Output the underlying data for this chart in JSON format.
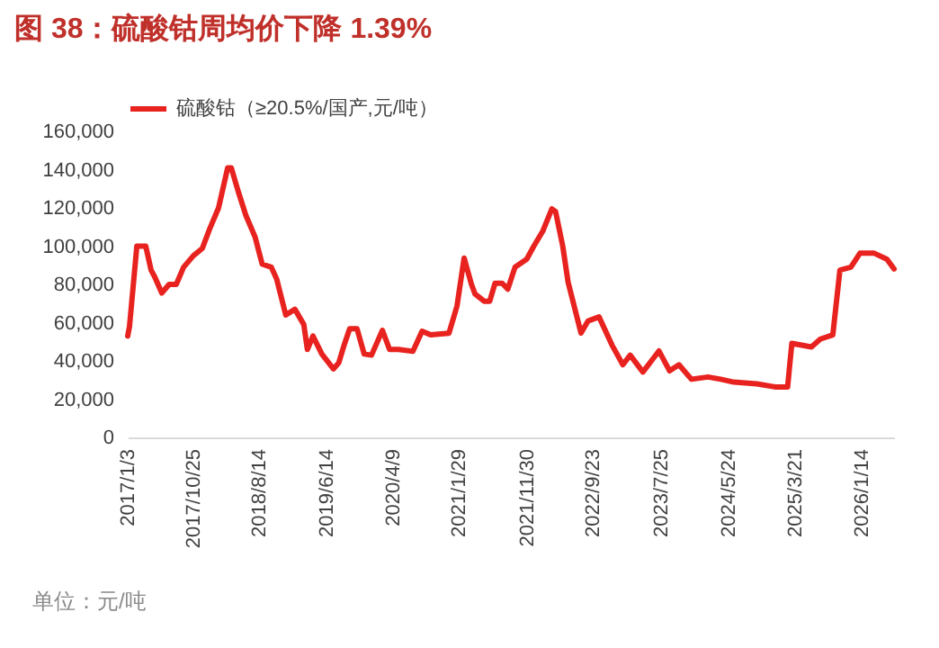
{
  "chart_data": {
    "type": "line",
    "title": "图 38：硫酸钴周均价下降 1.39%",
    "annotations": [
      "单位：元/吨"
    ],
    "legend": "top",
    "grid": false,
    "marker": "none",
    "line_style": "solid",
    "xlim": [
      "2017-01-03",
      "2026-06-07"
    ],
    "xticks": [
      {
        "value": "2017-01-03",
        "label": "2017/1/3"
      },
      {
        "value": "2017-10-25",
        "label": "2017/10/25"
      },
      {
        "value": "2018-08-14",
        "label": "2018/8/14"
      },
      {
        "value": "2019-06-14",
        "label": "2019/6/14"
      },
      {
        "value": "2020-04-09",
        "label": "2020/4/9"
      },
      {
        "value": "2021-01-29",
        "label": "2021/1/29"
      },
      {
        "value": "2021-11-30",
        "label": "2021/11/30"
      },
      {
        "value": "2022-09-23",
        "label": "2022/9/23"
      },
      {
        "value": "2023-07-25",
        "label": "2023/7/25"
      },
      {
        "value": "2024-05-24",
        "label": "2024/5/24"
      },
      {
        "value": "2025-03-21",
        "label": "2025/3/21"
      },
      {
        "value": "2026-01-14",
        "label": "2026/1/14"
      }
    ],
    "ylim": [
      0,
      160000
    ],
    "yticks": [
      0,
      {
        "value": 20000,
        "label": "20,000"
      },
      {
        "value": 40000,
        "label": "40,000"
      },
      {
        "value": 60000,
        "label": "60,000"
      },
      {
        "value": 80000,
        "label": "80,000"
      },
      {
        "value": 100000,
        "label": "100,000"
      },
      {
        "value": 120000,
        "label": "120,000"
      },
      {
        "value": 140000,
        "label": "140,000"
      },
      {
        "value": 160000,
        "label": "160,000"
      }
    ],
    "x": [
      "2017-01-03",
      "2017-01-11",
      "2017-02-13",
      "2017-03-25",
      "2017-04-18",
      "2017-05-04",
      "2017-06-05",
      "2017-07-08",
      "2017-08-09",
      "2017-09-11",
      "2017-10-25",
      "2017-12-04",
      "2018-01-06",
      "2018-02-15",
      "2018-03-28",
      "2018-04-13",
      "2018-05-16",
      "2018-06-18",
      "2018-07-29",
      "2018-08-30",
      "2018-10-10",
      "2018-11-03",
      "2018-12-14",
      "2019-01-24",
      "2019-03-05",
      "2019-03-21",
      "2019-04-15",
      "2019-05-25",
      "2019-07-16",
      "2019-08-09",
      "2019-09-03",
      "2019-09-27",
      "2019-10-30",
      "2019-12-01",
      "2020-01-03",
      "2020-02-21",
      "2020-03-24",
      "2020-05-03",
      "2020-07-07",
      "2020-08-17",
      "2020-09-26",
      "2020-12-16",
      "2021-01-21",
      "2021-02-22",
      "2021-03-27",
      "2021-04-12",
      "2021-05-23",
      "2021-06-17",
      "2021-07-11",
      "2021-08-12",
      "2021-09-06",
      "2021-10-09",
      "2021-11-30",
      "2022-01-01",
      "2022-02-11",
      "2022-03-23",
      "2022-04-09",
      "2022-05-11",
      "2022-06-04",
      "2022-08-01",
      "2022-09-02",
      "2022-10-21",
      "2022-12-18",
      "2023-02-05",
      "2023-03-10",
      "2023-05-06",
      "2023-07-17",
      "2023-09-03",
      "2023-10-15",
      "2023-12-10",
      "2024-02-22",
      "2024-04-20",
      "2024-06-17",
      "2024-09-29",
      "2024-12-19",
      "2025-02-14",
      "2025-03-05",
      "2025-06-01",
      "2025-07-11",
      "2025-09-05",
      "2025-10-07",
      "2025-11-25",
      "2026-01-05",
      "2026-03-10",
      "2026-05-06",
      "2026-06-07"
    ],
    "series": [
      {
        "name": "硫酸钴（≥20.5%/国产,元/吨）",
        "color": "#e8231f",
        "values": [
          53000,
          58000,
          100000,
          100000,
          87500,
          84000,
          75500,
          80000,
          80000,
          89000,
          95000,
          98800,
          109000,
          120000,
          141000,
          141000,
          128000,
          116000,
          104800,
          90600,
          89000,
          82800,
          64000,
          67000,
          59000,
          46000,
          53000,
          43600,
          35800,
          39000,
          48600,
          56800,
          56800,
          43600,
          43000,
          56000,
          46000,
          46000,
          45000,
          55500,
          53600,
          54500,
          68700,
          93800,
          80000,
          75000,
          71200,
          71200,
          80600,
          80600,
          77500,
          89100,
          93200,
          100000,
          108000,
          119500,
          118000,
          100000,
          81200,
          54600,
          60900,
          63000,
          48300,
          38000,
          43000,
          34200,
          45200,
          34800,
          38000,
          30400,
          31600,
          30400,
          28900,
          28000,
          26400,
          26400,
          49200,
          47300,
          51400,
          53600,
          87500,
          89000,
          96300,
          96300,
          93200,
          88100
        ]
      }
    ]
  }
}
